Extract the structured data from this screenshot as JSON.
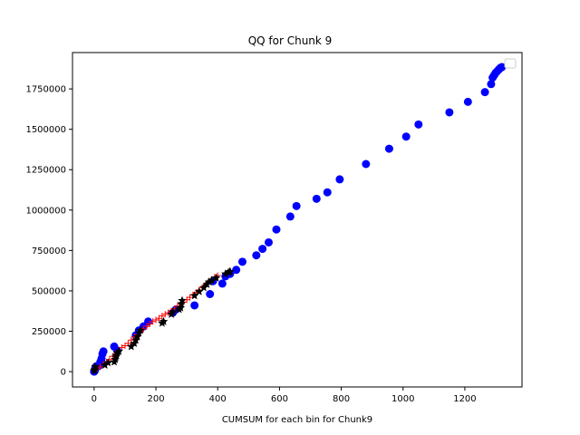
{
  "chart_data": {
    "type": "scatter",
    "title": "QQ for Chunk 9",
    "xlabel": "CUMSUM for each bin for Chunk9",
    "ylabel": "",
    "xlim": [
      -70,
      1385
    ],
    "ylim": [
      -95000,
      1975000
    ],
    "xticks": [
      0,
      200,
      400,
      600,
      800,
      1000,
      1200
    ],
    "yticks": [
      0,
      250000,
      500000,
      750000,
      1000000,
      1250000,
      1500000,
      1750000
    ],
    "legend": {
      "placement": "top-right",
      "entries": []
    },
    "grid": false,
    "series": [
      {
        "marker": "circle",
        "color": "#0000ff",
        "points": [
          [
            0,
            0
          ],
          [
            2,
            5000
          ],
          [
            3,
            12000
          ],
          [
            4,
            20000
          ],
          [
            5,
            28000
          ],
          [
            7,
            33000
          ],
          [
            15,
            35000
          ],
          [
            20,
            60000
          ],
          [
            24,
            80000
          ],
          [
            27,
            110000
          ],
          [
            30,
            125000
          ],
          [
            65,
            155000
          ],
          [
            75,
            130000
          ],
          [
            135,
            225000
          ],
          [
            145,
            255000
          ],
          [
            160,
            280000
          ],
          [
            175,
            310000
          ],
          [
            255,
            365000
          ],
          [
            265,
            385000
          ],
          [
            325,
            410000
          ],
          [
            375,
            480000
          ],
          [
            385,
            560000
          ],
          [
            415,
            545000
          ],
          [
            425,
            590000
          ],
          [
            440,
            605000
          ],
          [
            460,
            630000
          ],
          [
            480,
            680000
          ],
          [
            525,
            720000
          ],
          [
            545,
            760000
          ],
          [
            565,
            800000
          ],
          [
            590,
            880000
          ],
          [
            635,
            960000
          ],
          [
            655,
            1025000
          ],
          [
            720,
            1070000
          ],
          [
            755,
            1110000
          ],
          [
            795,
            1190000
          ],
          [
            880,
            1285000
          ],
          [
            955,
            1380000
          ],
          [
            1010,
            1455000
          ],
          [
            1050,
            1530000
          ],
          [
            1150,
            1605000
          ],
          [
            1210,
            1670000
          ],
          [
            1265,
            1730000
          ],
          [
            1285,
            1780000
          ],
          [
            1290,
            1820000
          ],
          [
            1295,
            1835000
          ],
          [
            1300,
            1850000
          ],
          [
            1305,
            1860000
          ],
          [
            1310,
            1870000
          ],
          [
            1315,
            1880000
          ],
          [
            1320,
            1885000
          ]
        ]
      },
      {
        "marker": "plus",
        "color": "#ff0000",
        "points": [
          [
            10,
            20000
          ],
          [
            20,
            30000
          ],
          [
            30,
            45000
          ],
          [
            40,
            60000
          ],
          [
            50,
            75000
          ],
          [
            60,
            95000
          ],
          [
            70,
            110000
          ],
          [
            80,
            130000
          ],
          [
            90,
            150000
          ],
          [
            100,
            160000
          ],
          [
            110,
            175000
          ],
          [
            120,
            195000
          ],
          [
            130,
            215000
          ],
          [
            140,
            230000
          ],
          [
            150,
            245000
          ],
          [
            160,
            265000
          ],
          [
            170,
            280000
          ],
          [
            180,
            295000
          ],
          [
            190,
            310000
          ],
          [
            200,
            320000
          ],
          [
            210,
            330000
          ],
          [
            220,
            345000
          ],
          [
            230,
            355000
          ],
          [
            240,
            365000
          ],
          [
            250,
            375000
          ],
          [
            260,
            390000
          ],
          [
            270,
            405000
          ],
          [
            280,
            420000
          ],
          [
            290,
            430000
          ],
          [
            300,
            445000
          ],
          [
            310,
            460000
          ],
          [
            320,
            475000
          ],
          [
            330,
            490000
          ],
          [
            340,
            505000
          ],
          [
            350,
            520000
          ],
          [
            360,
            535000
          ],
          [
            370,
            555000
          ],
          [
            380,
            570000
          ],
          [
            390,
            585000
          ],
          [
            400,
            595000
          ]
        ]
      },
      {
        "marker": "star",
        "color": "#000000",
        "points": [
          [
            0,
            5000
          ],
          [
            2,
            15000
          ],
          [
            4,
            30000
          ],
          [
            35,
            40000
          ],
          [
            45,
            55000
          ],
          [
            65,
            60000
          ],
          [
            68,
            75000
          ],
          [
            70,
            90000
          ],
          [
            72,
            100000
          ],
          [
            75,
            115000
          ],
          [
            80,
            125000
          ],
          [
            120,
            155000
          ],
          [
            130,
            175000
          ],
          [
            135,
            195000
          ],
          [
            140,
            215000
          ],
          [
            145,
            240000
          ],
          [
            150,
            255000
          ],
          [
            220,
            300000
          ],
          [
            225,
            310000
          ],
          [
            250,
            355000
          ],
          [
            255,
            370000
          ],
          [
            275,
            385000
          ],
          [
            280,
            395000
          ],
          [
            282,
            420000
          ],
          [
            285,
            440000
          ],
          [
            325,
            470000
          ],
          [
            340,
            495000
          ],
          [
            355,
            520000
          ],
          [
            365,
            540000
          ],
          [
            372,
            555000
          ],
          [
            380,
            565000
          ],
          [
            395,
            580000
          ],
          [
            425,
            605000
          ],
          [
            435,
            615000
          ],
          [
            440,
            620000
          ]
        ]
      }
    ]
  }
}
